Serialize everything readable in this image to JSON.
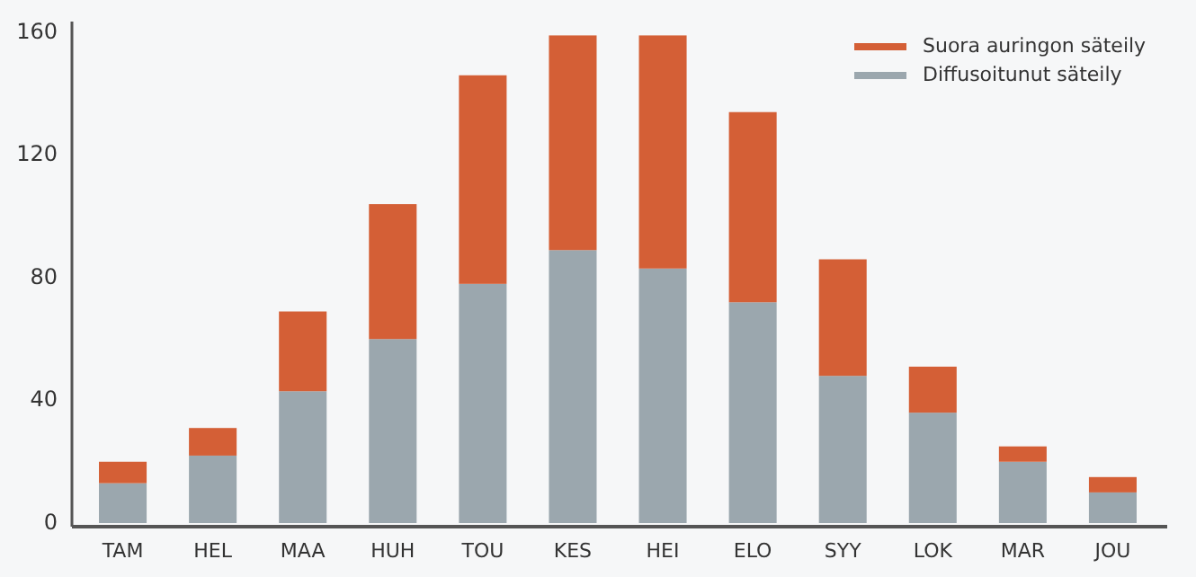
{
  "chart_data": {
    "type": "bar",
    "stacked": true,
    "categories": [
      "TAM",
      "HEL",
      "MAA",
      "HUH",
      "TOU",
      "KES",
      "HEI",
      "ELO",
      "SYY",
      "LOK",
      "MAR",
      "JOU"
    ],
    "series": [
      {
        "name": "Diffusoitunut säteily",
        "color": "#9ba7ae",
        "values": [
          13,
          22,
          43,
          60,
          78,
          89,
          83,
          72,
          48,
          36,
          20,
          10
        ]
      },
      {
        "name": "Suora auringon säteily",
        "color": "#d45f36",
        "values": [
          7,
          9,
          26,
          44,
          68,
          70,
          76,
          62,
          38,
          15,
          5,
          5
        ]
      }
    ],
    "ylim": [
      0,
      160
    ],
    "yticks": [
      0,
      40,
      80,
      120,
      160
    ],
    "grid": false,
    "legend": "top right"
  }
}
